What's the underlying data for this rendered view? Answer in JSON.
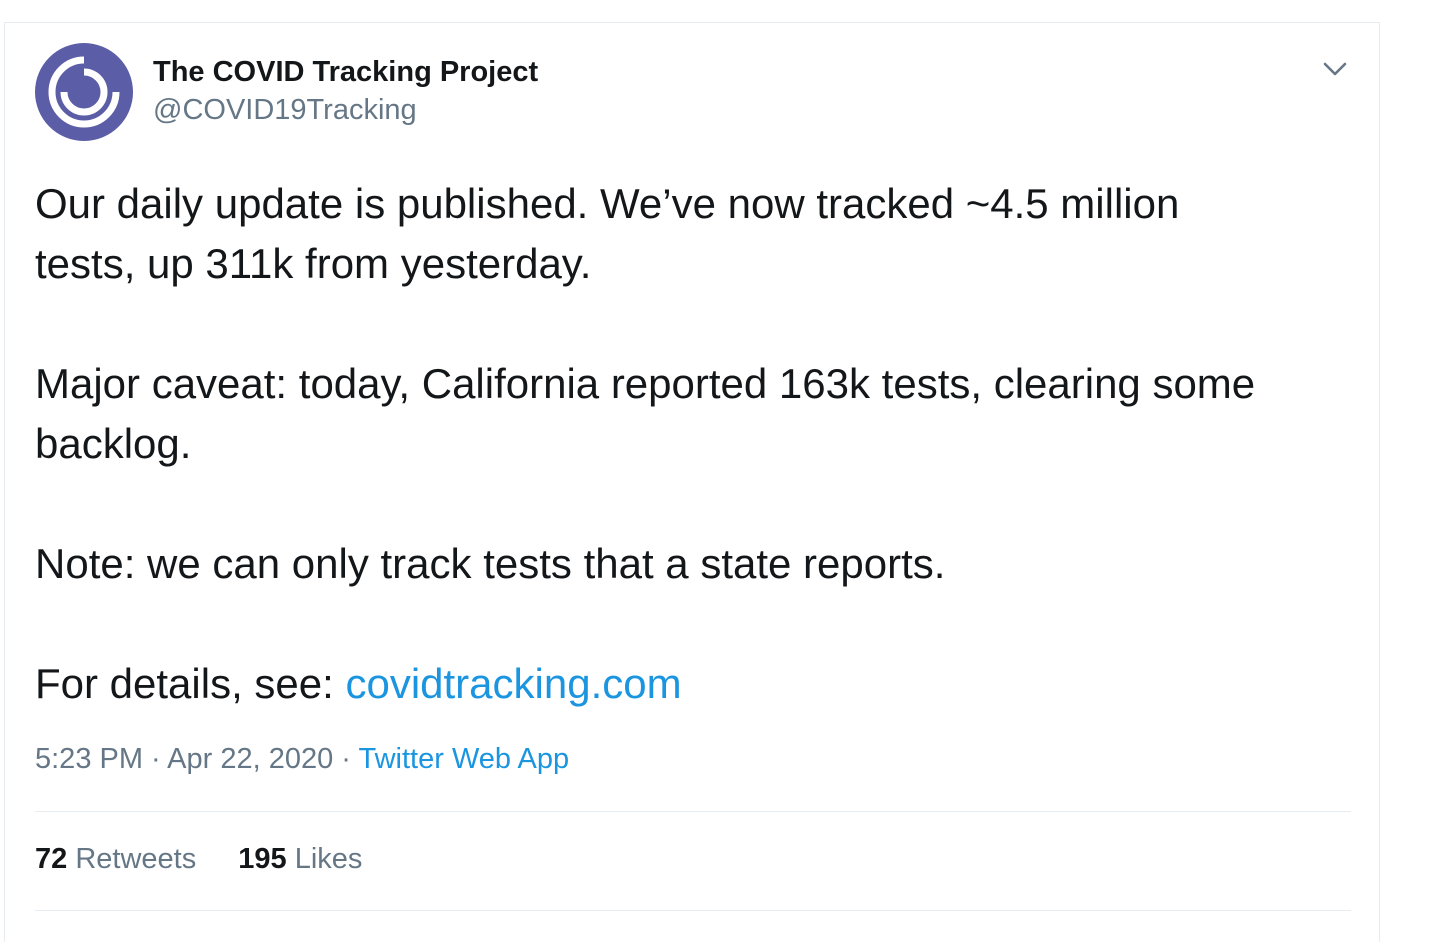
{
  "tweet": {
    "author_name": "The COVID Tracking Project",
    "author_handle": "@COVID19Tracking",
    "lines": {
      "l1": "Our daily update is published. We’ve now tracked ~4.5 million",
      "l2": "tests, up 311k from yesterday.",
      "l3": "Major caveat: today, California reported 163k tests, clearing some",
      "l4": "backlog.",
      "l5": "Note: we can only track tests that a state reports.",
      "l6_prefix": "For details, see: ",
      "link_text": "covidtracking.com"
    },
    "time": "5:23 PM",
    "date": "Apr 22, 2020",
    "source": "Twitter Web App",
    "separator": " · ",
    "retweets_count": "72",
    "retweets_label": "Retweets",
    "likes_count": "195",
    "likes_label": "Likes"
  },
  "icons": {
    "avatar": "covid-tracking-logo",
    "menu": "chevron-down-icon"
  },
  "colors": {
    "avatar_bg": "#5b5ea6",
    "link": "#1b95e0",
    "text": "#14171a",
    "muted": "#657786",
    "divider": "#e6ecf0"
  }
}
